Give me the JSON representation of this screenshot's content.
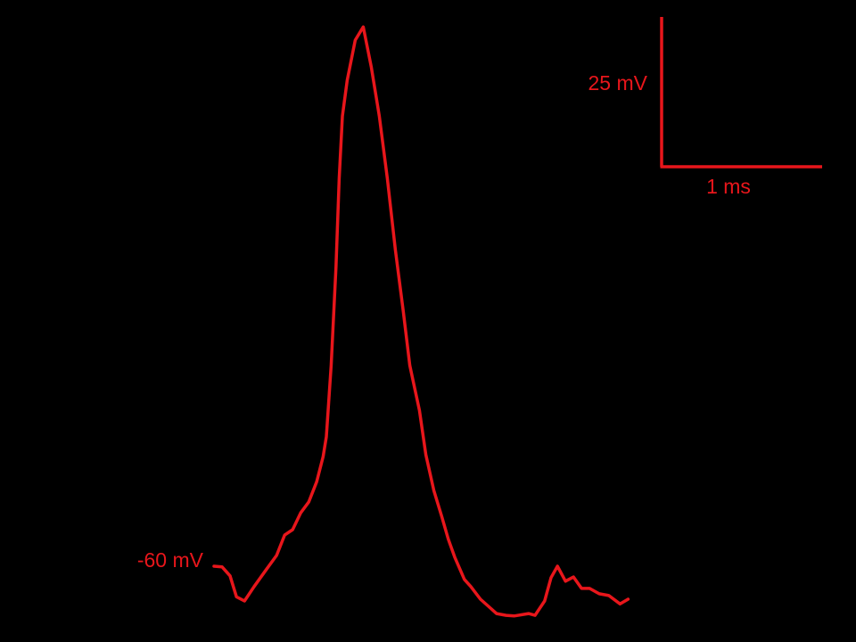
{
  "chart_data": {
    "type": "line",
    "title": "",
    "xlabel": "",
    "ylabel": "",
    "color": "#e8161b",
    "background": "#000000",
    "grid": false,
    "axes_visible": false,
    "baseline_label": "-60 mV",
    "baseline_value_mV": -60,
    "scale_bar": {
      "voltage_label": "25 mV",
      "voltage_mV": 25,
      "time_label": "1 ms",
      "time_ms": 1
    },
    "series": [
      {
        "x_ms": [
          0,
          0.05,
          0.1,
          0.14,
          0.19,
          0.25,
          0.33,
          0.39,
          0.44,
          0.49,
          0.54,
          0.59,
          0.64,
          0.68,
          0.7,
          0.73,
          0.76,
          0.78,
          0.8,
          0.83,
          0.88,
          0.93,
          0.98,
          1.03,
          1.08,
          1.13,
          1.18,
          1.22,
          1.28,
          1.32,
          1.37,
          1.42,
          1.46,
          1.5,
          1.56,
          1.6,
          1.66,
          1.71,
          1.76,
          1.82,
          1.87,
          1.96,
          2.0,
          2.06,
          2.1,
          2.14,
          2.19,
          2.24,
          2.29,
          2.34,
          2.4,
          2.46,
          2.53,
          2.58
        ],
        "y_mV": [
          -60,
          -60.1,
          -61.6,
          -65.1,
          -65.8,
          -63.4,
          -60.4,
          -58.2,
          -54.8,
          -53.9,
          -51.1,
          -49.3,
          -45.9,
          -41.7,
          -38.4,
          -26.5,
          -10.1,
          4.7,
          15.1,
          21.1,
          27.8,
          30.0,
          23.3,
          15.1,
          4.7,
          -7.2,
          -17.6,
          -26.5,
          -34.0,
          -41.4,
          -47.4,
          -51.8,
          -55.5,
          -58.5,
          -62.2,
          -63.4,
          -65.5,
          -66.7,
          -67.9,
          -68.2,
          -68.3,
          -67.9,
          -68.2,
          -65.8,
          -61.9,
          -60,
          -62.5,
          -61.8,
          -63.7,
          -63.7,
          -64.6,
          -64.9,
          -66.3,
          -65.5
        ]
      }
    ]
  }
}
